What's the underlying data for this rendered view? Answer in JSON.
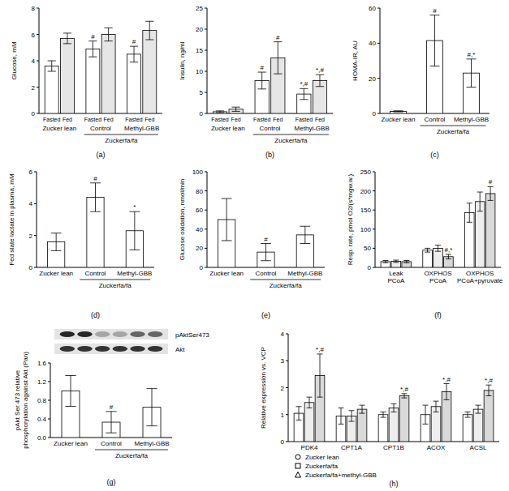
{
  "chart_data": [
    {
      "type": "bar",
      "panel": "(a)",
      "y_label": [
        "Glucose, mM"
      ],
      "categories": [
        "Fasted",
        "Fed",
        "Fasted",
        "Fed",
        "Fasted",
        "Fed"
      ],
      "groups": [
        "Zucker lean",
        "Control",
        "Methyl-GBB"
      ],
      "super_group": "Zuckerfa/fa",
      "series": [
        {
          "values": [
            3.6,
            5.7,
            4.9,
            6.0,
            4.5,
            6.3
          ],
          "errors": [
            0.4,
            0.4,
            0.6,
            0.5,
            0.6,
            0.7
          ],
          "significance": [
            null,
            null,
            "#",
            null,
            "#",
            null
          ],
          "colors": [
            "#ffffff",
            "#e6e6e6",
            "#ffffff",
            "#e6e6e6",
            "#ffffff",
            "#e6e6e6"
          ]
        }
      ],
      "ylim": [
        0,
        8
      ],
      "yticks": [
        0,
        2,
        4,
        6,
        8
      ]
    },
    {
      "type": "bar",
      "panel": "(b)",
      "y_label": [
        "Insulin, ng/ml"
      ],
      "categories": [
        "Fasted",
        "Fed",
        "Fasted",
        "Fed",
        "Fasted",
        "Fed"
      ],
      "groups": [
        "Zucker lean",
        "Control",
        "Methyl-GBB"
      ],
      "super_group": "Zuckerfa/fa",
      "series": [
        {
          "values": [
            0.4,
            1.0,
            7.8,
            13.2,
            4.6,
            7.8
          ],
          "errors": [
            0.2,
            0.5,
            2.0,
            3.8,
            1.3,
            1.4
          ],
          "significance": [
            null,
            null,
            "#",
            "#",
            "*,#",
            "*,#"
          ],
          "colors": [
            "#ffffff",
            "#e6e6e6",
            "#ffffff",
            "#e6e6e6",
            "#ffffff",
            "#e6e6e6"
          ]
        }
      ],
      "ylim": [
        0,
        25
      ],
      "yticks": [
        0,
        5,
        10,
        15,
        20,
        25
      ]
    },
    {
      "type": "bar",
      "panel": "(c)",
      "y_label": [
        "HOMA-IR, AU"
      ],
      "categories": [
        "Zucker lean",
        "Control",
        "Methyl-GBB"
      ],
      "super_group": "Zuckerfa/fa",
      "series": [
        {
          "values": [
            1.2,
            41.5,
            23
          ],
          "errors": [
            0.3,
            14.5,
            8
          ],
          "significance": [
            null,
            "#",
            "#,*"
          ],
          "colors": [
            "#ffffff",
            "#ffffff",
            "#ffffff"
          ]
        }
      ],
      "ylim": [
        0,
        60
      ],
      "yticks": [
        0,
        20,
        40,
        60
      ]
    },
    {
      "type": "bar",
      "panel": "(d)",
      "y_label": [
        "Fed state lactate in plasma, mM"
      ],
      "categories": [
        "Zucker lean",
        "Control",
        "Methyl-GBB"
      ],
      "super_group": "Zuckerfa/fa",
      "series": [
        {
          "values": [
            1.6,
            4.4,
            2.3
          ],
          "errors": [
            0.55,
            0.9,
            1.2
          ],
          "significance": [
            null,
            "#",
            "*"
          ],
          "colors": [
            "#ffffff",
            "#ffffff",
            "#ffffff"
          ]
        }
      ],
      "ylim": [
        0,
        6
      ],
      "yticks": [
        0,
        2,
        4,
        6
      ]
    },
    {
      "type": "bar",
      "panel": "(e)",
      "y_label": [
        "Glucose oxidation, nmol/min"
      ],
      "categories": [
        "Zucker lean",
        "Control",
        "Methyl-GBB"
      ],
      "super_group": "Zuckerfa/fa",
      "series": [
        {
          "values": [
            50,
            16,
            34
          ],
          "errors": [
            22,
            9,
            9
          ],
          "significance": [
            null,
            "#",
            null
          ],
          "colors": [
            "#ffffff",
            "#ffffff",
            "#ffffff"
          ]
        }
      ],
      "ylim": [
        0,
        100
      ],
      "yticks": [
        0,
        20,
        40,
        60,
        80,
        100
      ]
    },
    {
      "type": "bar",
      "panel": "(f)",
      "y_label": [
        "Resp. rate, pmol O2/(s*mgw.w.)"
      ],
      "categories": [
        "Leak PCoA",
        "OXPHOS PCoA",
        "OXPHOS PCoA+pyruvate"
      ],
      "series": [
        {
          "color": "#ffffff",
          "values": [
            15,
            45,
            143
          ],
          "errors": [
            3,
            5,
            25
          ]
        },
        {
          "color": "#eeeeee",
          "values": [
            16,
            50,
            172
          ],
          "errors": [
            3,
            8,
            25
          ]
        },
        {
          "color": "#d9d9d9",
          "values": [
            15,
            28,
            193
          ],
          "errors": [
            3,
            6,
            18
          ],
          "significance": [
            null,
            "#,*",
            "#"
          ]
        }
      ],
      "ylim": [
        0,
        250
      ],
      "yticks": [
        0,
        50,
        100,
        150,
        200,
        250
      ]
    },
    {
      "type": "bar",
      "panel": "(g)",
      "y_label": [
        "pAkt Ser 473 relative",
        "phosphorylation against Akt (Pan)"
      ],
      "blot_labels": [
        "pAktSer473",
        "Akt"
      ],
      "categories": [
        "Zucker lean",
        "Control",
        "Methyl-GBB"
      ],
      "super_group": "Zuckerfa/fa",
      "series": [
        {
          "values": [
            1.0,
            0.33,
            0.65
          ],
          "errors": [
            0.33,
            0.23,
            0.4
          ],
          "significance": [
            null,
            "#",
            null
          ],
          "colors": [
            "#ffffff",
            "#ffffff",
            "#ffffff"
          ]
        }
      ],
      "ylim": [
        0,
        1.6
      ],
      "yticks": [
        {
          "value": 0,
          "label": "0.0"
        },
        0.4,
        0.8,
        1.2,
        1.6
      ]
    },
    {
      "type": "bar",
      "panel": "(h)",
      "y_label": [
        "Relative expression vs. VCP"
      ],
      "categories": [
        "PDK4",
        "CPT1A",
        "CPT1B",
        "ACOX",
        "ACSL"
      ],
      "series": [
        {
          "name": "Zucker lean",
          "marker": "circle",
          "color": "#ffffff",
          "values": [
            1.05,
            0.95,
            1.0,
            1.0,
            1.0
          ],
          "errors": [
            0.25,
            0.3,
            0.1,
            0.35,
            0.1
          ]
        },
        {
          "name": "Zuckerfa/fa",
          "marker": "square",
          "color": "#eeeeee",
          "values": [
            1.45,
            0.95,
            1.25,
            1.3,
            1.2
          ],
          "errors": [
            0.2,
            0.2,
            0.15,
            0.2,
            0.15
          ]
        },
        {
          "name": "Zuckerfa/fa+methyl-GBB",
          "marker": "triangle",
          "color": "#d9d9d9",
          "values": [
            2.45,
            1.2,
            1.7,
            1.85,
            1.9
          ],
          "errors": [
            0.8,
            0.15,
            0.08,
            0.3,
            0.2
          ],
          "significance": [
            "*,#",
            null,
            "*,#",
            "*,#",
            "*,#"
          ]
        }
      ],
      "legend": "bottom",
      "ylim": [
        0,
        4
      ],
      "yticks": [
        0,
        1,
        2,
        3,
        4
      ]
    }
  ]
}
